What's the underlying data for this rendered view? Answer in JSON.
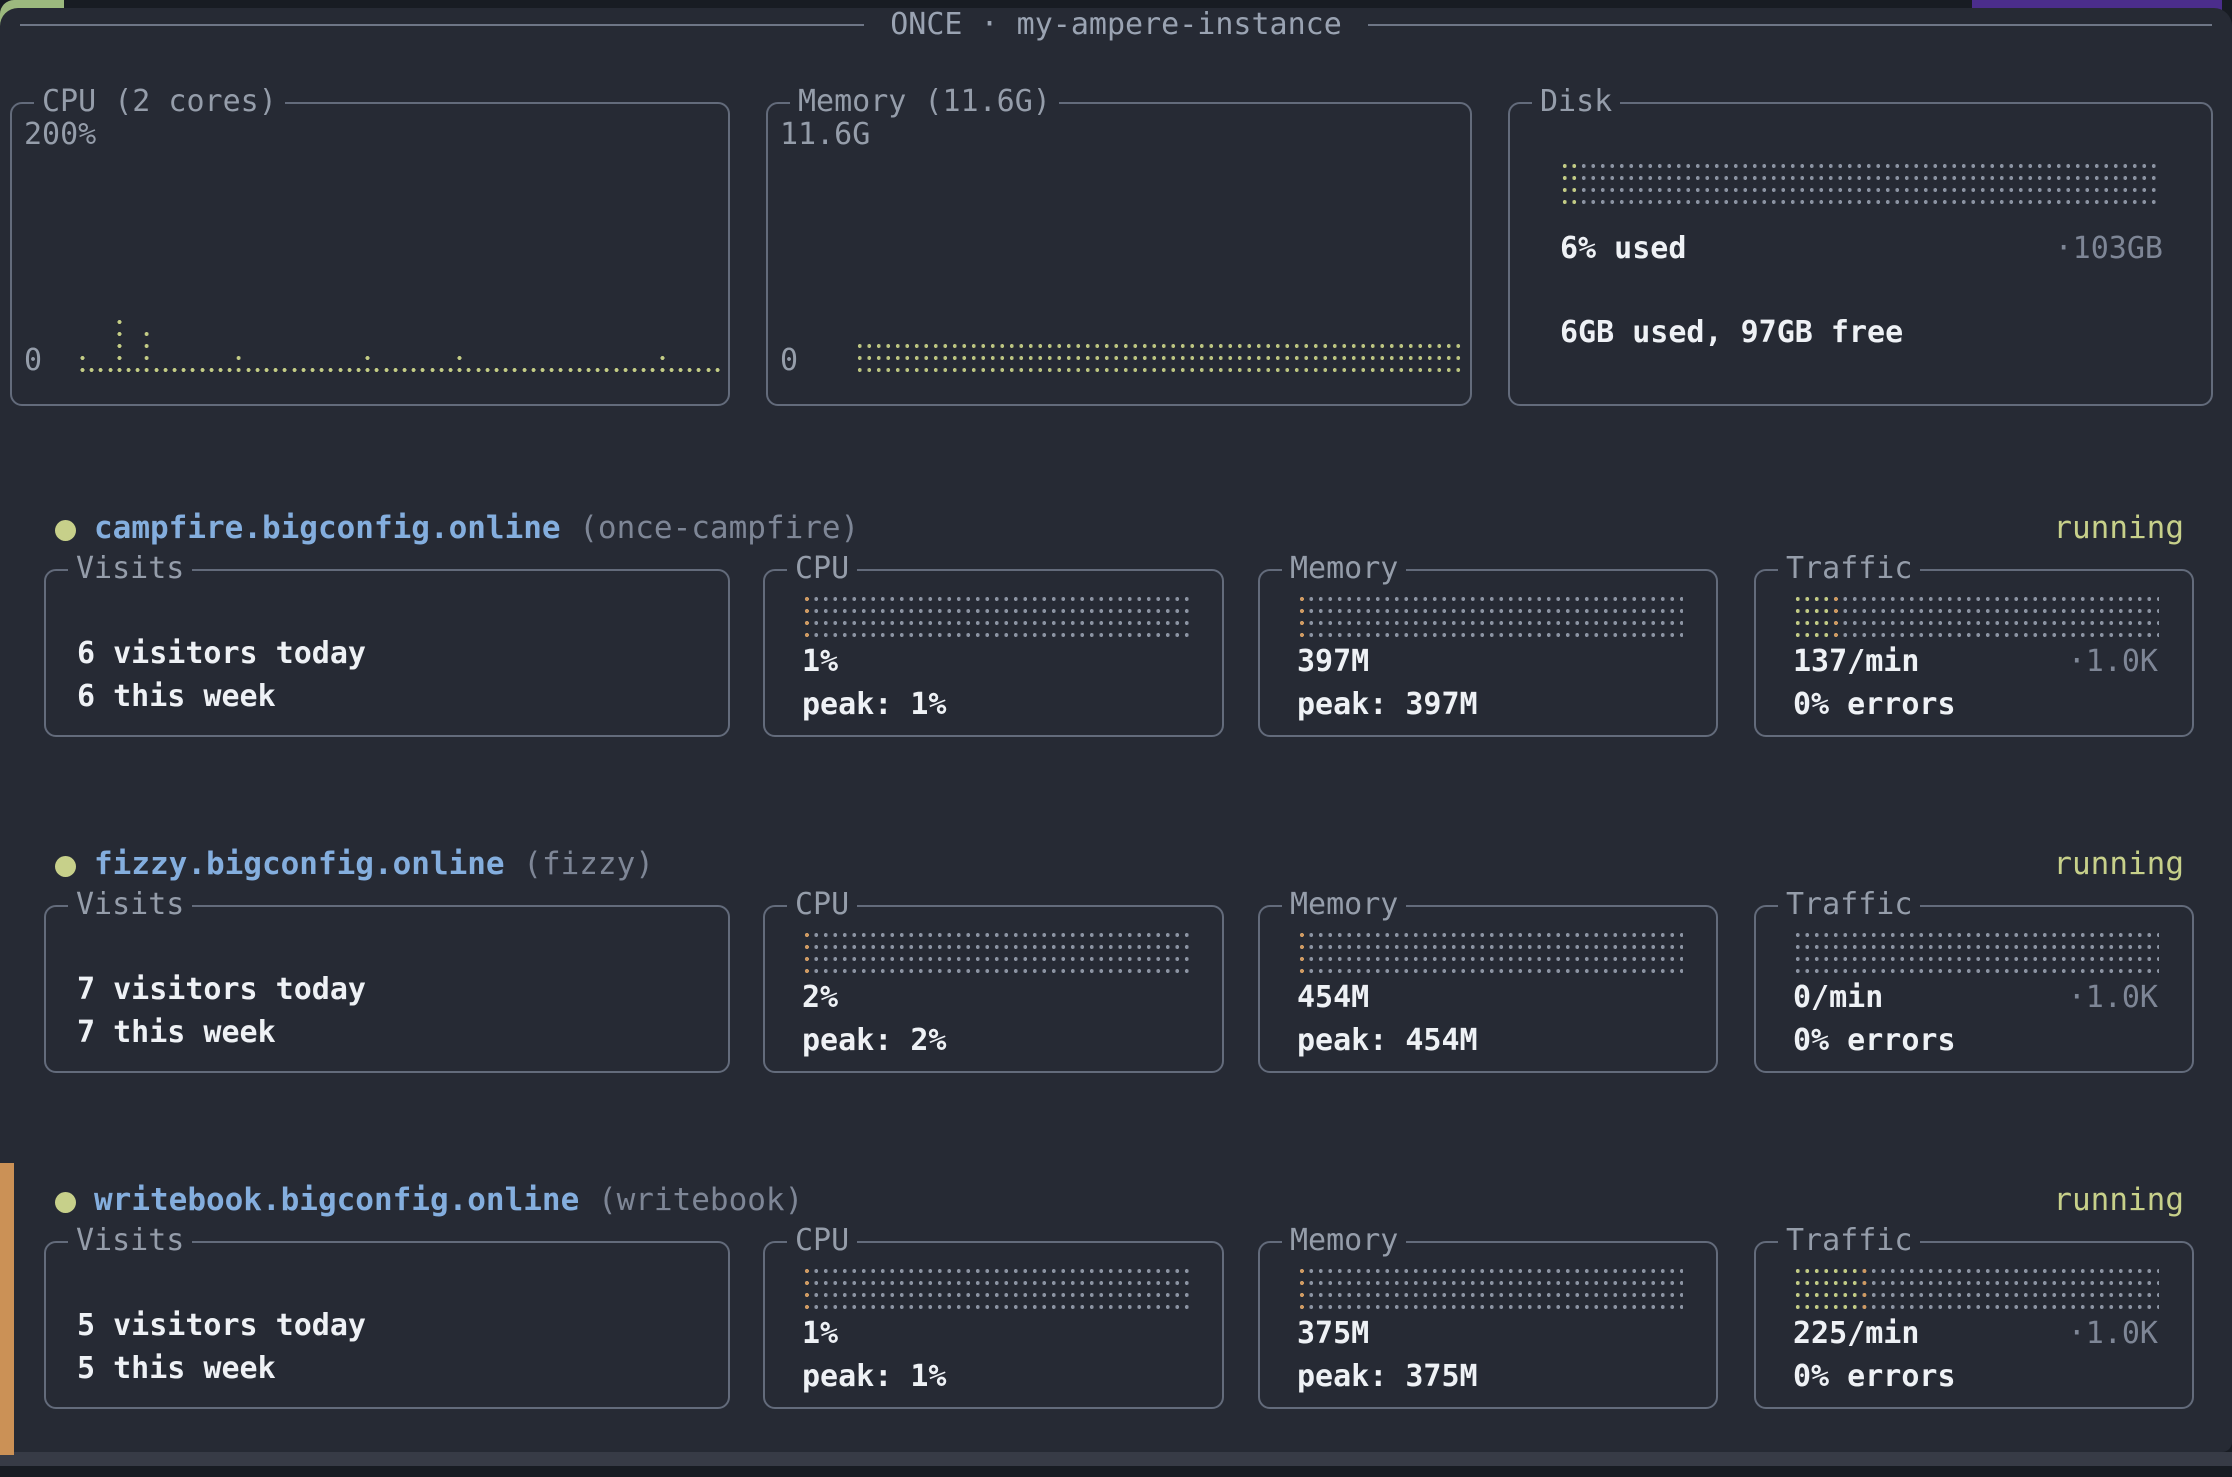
{
  "header": {
    "title": "ONCE · my-ampere-instance"
  },
  "colors": {
    "panel_bg": "#262a34",
    "border": "#636b7b",
    "text_white": "#eef1f5",
    "text_gray": "#959daa",
    "accent_blue": "#84aede",
    "accent_green": "#c7d08a",
    "accent_orange": "#cb9156",
    "gauge_gray": "#8c94a3"
  },
  "system": {
    "cpu": {
      "label": "CPU (2 cores)",
      "y_max": "200%",
      "y_min": "0",
      "spark": [
        2,
        1,
        1,
        1,
        5,
        1,
        1,
        4,
        1,
        1,
        1,
        1,
        1,
        1,
        1,
        1,
        1,
        2,
        1,
        1,
        1,
        1,
        1,
        1,
        1,
        1,
        1,
        1,
        1,
        1,
        1,
        2,
        1,
        1,
        1,
        1,
        1,
        1,
        1,
        1,
        1,
        2,
        1,
        1,
        1,
        1,
        1,
        1,
        1,
        1,
        1,
        1,
        1,
        1,
        1,
        1,
        1,
        1,
        1,
        1,
        1,
        1,
        1,
        2,
        1,
        1,
        1,
        1,
        1,
        1
      ]
    },
    "memory": {
      "label": "Memory (11.6G)",
      "y_max": "11.6G",
      "y_min": "0",
      "flat": {
        "rows": 3,
        "cols": 64
      }
    },
    "disk": {
      "label": "Disk",
      "used_text": "6% used",
      "total_text": "·103GB",
      "detail_text": "6GB used, 97GB free",
      "segments": [
        {
          "color": "green",
          "cols": 2
        }
      ]
    }
  },
  "services": [
    {
      "domain": "campfire.bigconfig.online",
      "unit": "(once-campfire)",
      "status": "running",
      "selected": false,
      "visits": {
        "label": "Visits",
        "line1": "6 visitors today",
        "line2": "6 this week"
      },
      "cpu": {
        "label": "CPU",
        "value": "1%",
        "peak": "peak: 1%",
        "segments": [
          {
            "color": "orange",
            "cols": 1
          }
        ]
      },
      "memory": {
        "label": "Memory",
        "value": "397M",
        "peak": "peak: 397M",
        "segments": [
          {
            "color": "orange",
            "cols": 1
          }
        ]
      },
      "traffic": {
        "label": "Traffic",
        "value": "137/min",
        "scale": "·1.0K",
        "errors": "0% errors",
        "segments": [
          {
            "color": "green",
            "cols": 4
          },
          {
            "color": "orange",
            "cols": 1
          }
        ]
      }
    },
    {
      "domain": "fizzy.bigconfig.online",
      "unit": "(fizzy)",
      "status": "running",
      "selected": false,
      "visits": {
        "label": "Visits",
        "line1": "7 visitors today",
        "line2": "7 this week"
      },
      "cpu": {
        "label": "CPU",
        "value": "2%",
        "peak": "peak: 2%",
        "segments": [
          {
            "color": "orange",
            "cols": 1
          }
        ]
      },
      "memory": {
        "label": "Memory",
        "value": "454M",
        "peak": "peak: 454M",
        "segments": [
          {
            "color": "orange",
            "cols": 1
          }
        ]
      },
      "traffic": {
        "label": "Traffic",
        "value": "0/min",
        "scale": "·1.0K",
        "errors": "0% errors",
        "segments": []
      }
    },
    {
      "domain": "writebook.bigconfig.online",
      "unit": "(writebook)",
      "status": "running",
      "selected": true,
      "visits": {
        "label": "Visits",
        "line1": "5 visitors today",
        "line2": "5 this week"
      },
      "cpu": {
        "label": "CPU",
        "value": "1%",
        "peak": "peak: 1%",
        "segments": [
          {
            "color": "orange",
            "cols": 1
          }
        ]
      },
      "memory": {
        "label": "Memory",
        "value": "375M",
        "peak": "peak: 375M",
        "segments": [
          {
            "color": "orange",
            "cols": 1
          }
        ]
      },
      "traffic": {
        "label": "Traffic",
        "value": "225/min",
        "scale": "·1.0K",
        "errors": "0% errors",
        "segments": [
          {
            "color": "green",
            "cols": 7
          },
          {
            "color": "orange",
            "cols": 1
          }
        ]
      }
    }
  ]
}
